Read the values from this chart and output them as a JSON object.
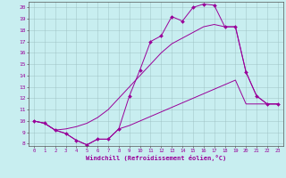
{
  "xlabel": "Windchill (Refroidissement éolien,°C)",
  "x": [
    0,
    1,
    2,
    3,
    4,
    5,
    6,
    7,
    8,
    9,
    10,
    11,
    12,
    13,
    14,
    15,
    16,
    17,
    18,
    19,
    20,
    21,
    22,
    23
  ],
  "y_main": [
    10,
    9.8,
    9.2,
    8.9,
    8.3,
    7.9,
    8.4,
    8.4,
    9.3,
    12.2,
    14.5,
    17.0,
    17.5,
    19.2,
    18.8,
    20.0,
    20.3,
    20.2,
    18.3,
    18.3,
    14.3,
    12.2,
    11.5,
    11.5
  ],
  "y_lower": [
    10,
    9.8,
    9.2,
    8.9,
    8.3,
    7.9,
    8.4,
    8.4,
    9.3,
    9.6,
    10.0,
    10.4,
    10.8,
    11.2,
    11.6,
    12.0,
    12.4,
    12.8,
    13.2,
    13.6,
    11.5,
    11.5,
    11.5,
    11.5
  ],
  "y_upper": [
    10,
    9.8,
    9.2,
    9.3,
    9.5,
    9.8,
    10.3,
    11.0,
    12.0,
    13.0,
    14.0,
    15.0,
    16.0,
    16.8,
    17.3,
    17.8,
    18.3,
    18.5,
    18.3,
    18.3,
    14.3,
    12.2,
    11.5,
    11.5
  ],
  "line_color": "#990099",
  "bg_color": "#c8eef0",
  "grid_color": "#9dbfc2",
  "ylim": [
    8,
    20
  ],
  "xlim": [
    0,
    23
  ]
}
